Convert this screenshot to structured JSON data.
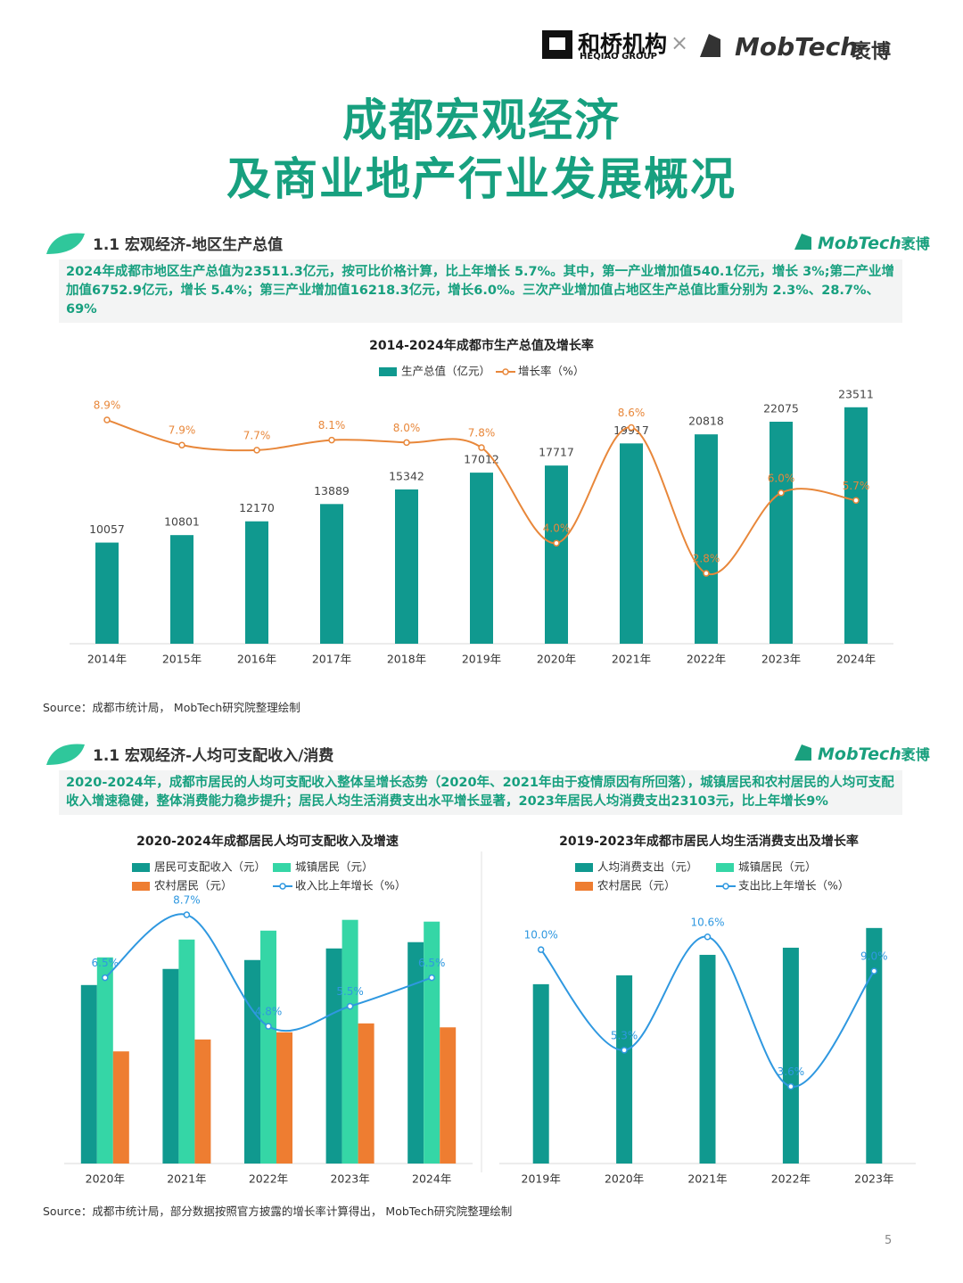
{
  "header": {
    "logo_left": "和桥机构",
    "logo_left_sub": "HEQIAO GROUP",
    "separator": "×",
    "logo_right": "MobTech",
    "logo_right_cn": "袤博"
  },
  "title": [
    "成都宏观经济",
    "及商业地产行业发展概况"
  ],
  "sections": [
    {
      "heading": "1.1 宏观经济-地区生产总值",
      "brand": "MobTech",
      "brand_cn": "袤博",
      "text": "2024年成都市地区生产总值为23511.3亿元，按可比价格计算，比上年增长 5.7%。其中，第一产业增加值540.1亿元，增长 3%;第二产业增加值6752.9亿元，增长 5.4%；第三产业增加值16218.3亿元，增长6.0%。三次产业增加值占地区生产总值比重分别为 2.3%、28.7%、69%",
      "source": "Source：成都市统计局， MobTech研究院整理绘制"
    },
    {
      "heading": "1.1 宏观经济-人均可支配收入/消费",
      "brand": "MobTech",
      "brand_cn": "袤博",
      "text": "2020-2024年，成都市居民的人均可支配收入整体呈增长态势（2020年、2021年由于疫情原因有所回落），城镇居民和农村居民的人均可支配收入增速稳健，整体消费能力稳步提升；居民人均生活消费支出水平增长显著，2023年居民人均消费支出23103元，比上年增长9%",
      "source": "Source：成都市统计局，部分数据按照官方披露的增长率计算得出， MobTech研究院整理绘制"
    }
  ],
  "chart_data": [
    {
      "type": "combo",
      "title": "2014-2024年成都市生产总值及增长率",
      "categories": [
        "2014年",
        "2015年",
        "2016年",
        "2017年",
        "2018年",
        "2019年",
        "2020年",
        "2021年",
        "2022年",
        "2023年",
        "2024年"
      ],
      "series": [
        {
          "name": "生产总值（亿元）",
          "type": "bar",
          "color": "#10998f",
          "values": [
            10057,
            10801,
            12170,
            13889,
            15342,
            17012,
            17717,
            19917,
            20818,
            22075,
            23511
          ]
        },
        {
          "name": "增长率（%）",
          "type": "line",
          "axis": "y2",
          "color": "#e8873a",
          "values": [
            8.9,
            7.9,
            7.7,
            8.1,
            8.0,
            7.8,
            4.0,
            8.6,
            2.8,
            6.0,
            5.7
          ],
          "value_labels": [
            "8.9%",
            "7.9%",
            "7.7%",
            "8.1%",
            "8.0%",
            "7.8%",
            "4.0%",
            "8.6%",
            "2.8%",
            "6.0%",
            "5.7%"
          ]
        }
      ],
      "ylim": [
        0,
        25000
      ],
      "y2lim": [
        0,
        10
      ]
    },
    {
      "type": "combo",
      "title": "2020-2024年成都居民人均可支配收入及增速",
      "categories": [
        "2020年",
        "2021年",
        "2022年",
        "2023年",
        "2024年"
      ],
      "series": [
        {
          "name": "居民可支配收入（元）",
          "type": "bar",
          "color": "#10998f",
          "values": [
            42075,
            45870,
            47970,
            50700,
            52180
          ]
        },
        {
          "name": "城镇居民（元）",
          "type": "bar",
          "color": "#35d6a6",
          "values": [
            48593,
            52800,
            54900,
            57440,
            57020
          ]
        },
        {
          "name": "农村居民（元）",
          "type": "bar",
          "color": "#ee7d31",
          "values": [
            26432,
            29240,
            30930,
            33030,
            32100
          ]
        },
        {
          "name": "收入比上年增长（%）",
          "type": "line",
          "axis": "y2",
          "color": "#2f98e0",
          "values": [
            6.5,
            8.7,
            4.8,
            5.5,
            6.5
          ],
          "value_labels": [
            "6.5%",
            "8.7%",
            "4.8%",
            "5.5%",
            "6.5%"
          ]
        }
      ],
      "ylim": [
        0,
        62000
      ],
      "y2lim": [
        0,
        9.2
      ]
    },
    {
      "type": "combo",
      "title": "2019-2023年成都市居民人均生活消费支出及增长率",
      "categories": [
        "2019年",
        "2020年",
        "2021年",
        "2022年",
        "2023年"
      ],
      "series": [
        {
          "name": "人均消费支出（元）",
          "type": "bar",
          "color": "#10998f",
          "values": [
            17590,
            18460,
            20470,
            21170,
            23103
          ]
        },
        {
          "name": "城镇居民（元）",
          "type": "bar",
          "color": "#35d6a6",
          "values": [
            null,
            null,
            null,
            null,
            null
          ]
        },
        {
          "name": "农村居民（元）",
          "type": "bar",
          "color": "#ee7d31",
          "values": [
            null,
            null,
            null,
            null,
            null
          ]
        },
        {
          "name": "支出比上年增长（%）",
          "type": "line",
          "axis": "y2",
          "color": "#2f98e0",
          "values": [
            10.0,
            5.3,
            10.6,
            3.6,
            9.0
          ],
          "value_labels": [
            "10.0%",
            "5.3%",
            "10.6%",
            "3.6%",
            "9.0%"
          ]
        }
      ],
      "ylim": [
        0,
        25800
      ],
      "y2lim": [
        0,
        12.3
      ]
    }
  ],
  "page_number": "5"
}
